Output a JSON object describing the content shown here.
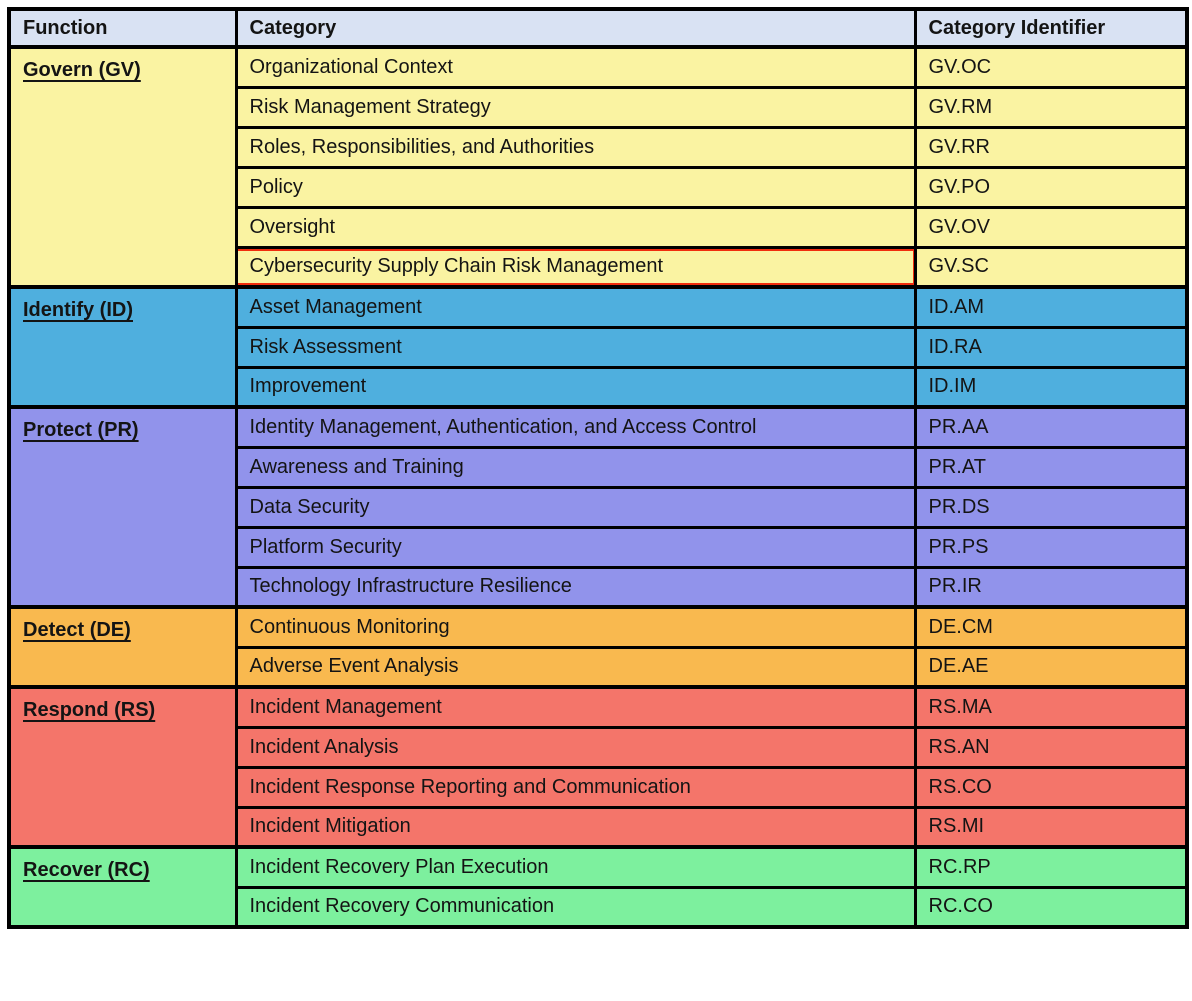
{
  "table": {
    "headers": [
      {
        "label": "Function"
      },
      {
        "label": "Category"
      },
      {
        "label": "Category Identifier"
      }
    ],
    "header_bg": "#D9E2F3",
    "border_color": "#000000",
    "highlight_color": "#F02D0D",
    "sections": [
      {
        "id": "govern",
        "function_label": "Govern (GV)",
        "bg": "#FAF3A2",
        "categories": [
          {
            "name": "Organizational Context",
            "identifier": "GV.OC"
          },
          {
            "name": "Risk Management Strategy",
            "identifier": "GV.RM"
          },
          {
            "name": "Roles, Responsibilities, and Authorities",
            "identifier": "GV.RR"
          },
          {
            "name": "Policy",
            "identifier": "GV.PO"
          },
          {
            "name": "Oversight",
            "identifier": "GV.OV"
          },
          {
            "name": "Cybersecurity Supply Chain Risk Management",
            "identifier": "GV.SC",
            "highlighted": true
          }
        ]
      },
      {
        "id": "identify",
        "function_label": "Identify (ID)",
        "bg": "#4FAFDE",
        "categories": [
          {
            "name": "Asset Management",
            "identifier": "ID.AM"
          },
          {
            "name": "Risk Assessment",
            "identifier": "ID.RA"
          },
          {
            "name": "Improvement",
            "identifier": "ID.IM"
          }
        ]
      },
      {
        "id": "protect",
        "function_label": "Protect (PR)",
        "bg": "#9193EB",
        "categories": [
          {
            "name": "Identity Management, Authentication, and Access Control",
            "identifier": "PR.AA"
          },
          {
            "name": "Awareness and Training",
            "identifier": "PR.AT"
          },
          {
            "name": "Data Security",
            "identifier": "PR.DS"
          },
          {
            "name": "Platform Security",
            "identifier": "PR.PS"
          },
          {
            "name": "Technology Infrastructure Resilience",
            "identifier": "PR.IR"
          }
        ]
      },
      {
        "id": "detect",
        "function_label": "Detect (DE)",
        "bg": "#F9B94F",
        "categories": [
          {
            "name": "Continuous Monitoring",
            "identifier": "DE.CM"
          },
          {
            "name": "Adverse Event Analysis",
            "identifier": "DE.AE"
          }
        ]
      },
      {
        "id": "respond",
        "function_label": "Respond (RS)",
        "bg": "#F4756A",
        "categories": [
          {
            "name": "Incident Management",
            "identifier": "RS.MA"
          },
          {
            "name": "Incident Analysis",
            "identifier": "RS.AN"
          },
          {
            "name": "Incident Response Reporting and Communication",
            "identifier": "RS.CO"
          },
          {
            "name": "Incident Mitigation",
            "identifier": "RS.MI"
          }
        ]
      },
      {
        "id": "recover",
        "function_label": "Recover (RC)",
        "bg": "#7DF09E",
        "categories": [
          {
            "name": "Incident Recovery Plan Execution",
            "identifier": "RC.RP"
          },
          {
            "name": "Incident Recovery Communication",
            "identifier": "RC.CO"
          }
        ]
      }
    ]
  }
}
